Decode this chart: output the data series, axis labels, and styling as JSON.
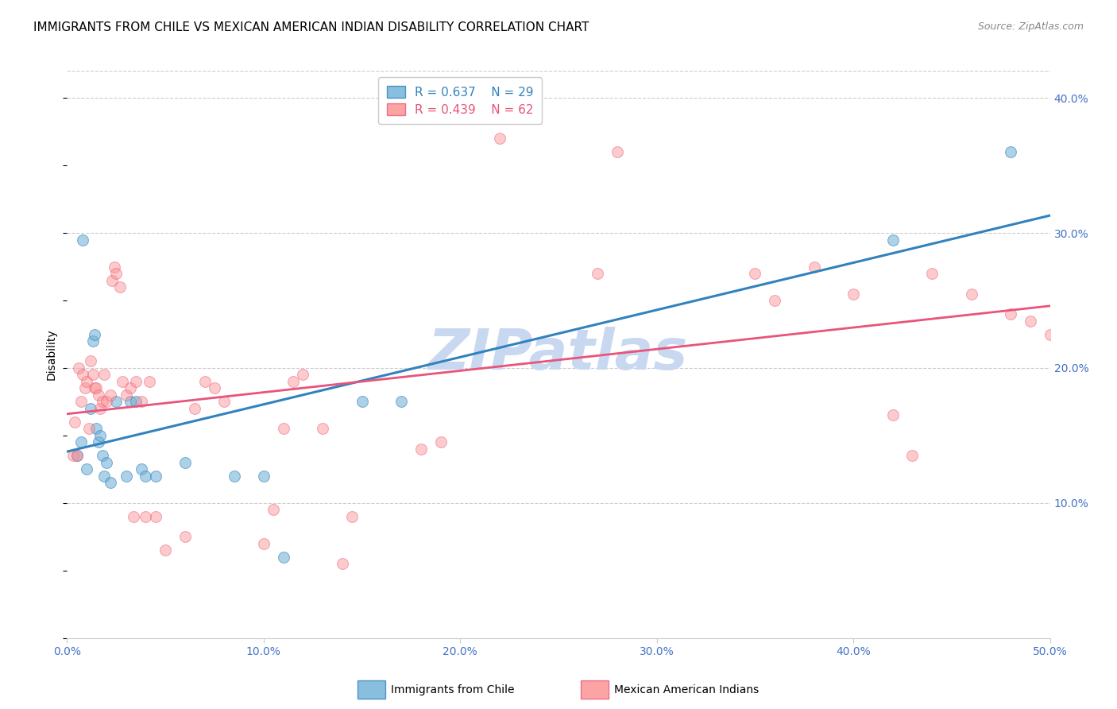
{
  "title": "IMMIGRANTS FROM CHILE VS MEXICAN AMERICAN INDIAN DISABILITY CORRELATION CHART",
  "source": "Source: ZipAtlas.com",
  "ylabel": "Disability",
  "xlim": [
    0.0,
    0.5
  ],
  "ylim": [
    0.0,
    0.42
  ],
  "xticks": [
    0.0,
    0.1,
    0.2,
    0.3,
    0.4,
    0.5
  ],
  "yticks_right": [
    0.1,
    0.2,
    0.3,
    0.4
  ],
  "blue_R": 0.637,
  "blue_N": 29,
  "pink_R": 0.439,
  "pink_N": 62,
  "blue_color": "#6baed6",
  "pink_color": "#fc8d8d",
  "blue_line_color": "#3182bd",
  "pink_line_color": "#e8547a",
  "watermark": "ZIPatlas",
  "watermark_color": "#c8d8f0",
  "legend_label_blue": "Immigrants from Chile",
  "legend_label_pink": "Mexican American Indians",
  "tick_color": "#4472c4",
  "blue_scatter": [
    [
      0.005,
      0.135
    ],
    [
      0.007,
      0.145
    ],
    [
      0.008,
      0.295
    ],
    [
      0.01,
      0.125
    ],
    [
      0.012,
      0.17
    ],
    [
      0.013,
      0.22
    ],
    [
      0.014,
      0.225
    ],
    [
      0.015,
      0.155
    ],
    [
      0.016,
      0.145
    ],
    [
      0.017,
      0.15
    ],
    [
      0.018,
      0.135
    ],
    [
      0.019,
      0.12
    ],
    [
      0.02,
      0.13
    ],
    [
      0.022,
      0.115
    ],
    [
      0.025,
      0.175
    ],
    [
      0.03,
      0.12
    ],
    [
      0.032,
      0.175
    ],
    [
      0.035,
      0.175
    ],
    [
      0.038,
      0.125
    ],
    [
      0.04,
      0.12
    ],
    [
      0.045,
      0.12
    ],
    [
      0.06,
      0.13
    ],
    [
      0.085,
      0.12
    ],
    [
      0.1,
      0.12
    ],
    [
      0.11,
      0.06
    ],
    [
      0.15,
      0.175
    ],
    [
      0.17,
      0.175
    ],
    [
      0.42,
      0.295
    ],
    [
      0.48,
      0.36
    ]
  ],
  "pink_scatter": [
    [
      0.003,
      0.135
    ],
    [
      0.004,
      0.16
    ],
    [
      0.005,
      0.135
    ],
    [
      0.006,
      0.2
    ],
    [
      0.007,
      0.175
    ],
    [
      0.008,
      0.195
    ],
    [
      0.009,
      0.185
    ],
    [
      0.01,
      0.19
    ],
    [
      0.011,
      0.155
    ],
    [
      0.012,
      0.205
    ],
    [
      0.013,
      0.195
    ],
    [
      0.014,
      0.185
    ],
    [
      0.015,
      0.185
    ],
    [
      0.016,
      0.18
    ],
    [
      0.017,
      0.17
    ],
    [
      0.018,
      0.175
    ],
    [
      0.019,
      0.195
    ],
    [
      0.02,
      0.175
    ],
    [
      0.022,
      0.18
    ],
    [
      0.023,
      0.265
    ],
    [
      0.024,
      0.275
    ],
    [
      0.025,
      0.27
    ],
    [
      0.027,
      0.26
    ],
    [
      0.028,
      0.19
    ],
    [
      0.03,
      0.18
    ],
    [
      0.032,
      0.185
    ],
    [
      0.034,
      0.09
    ],
    [
      0.035,
      0.19
    ],
    [
      0.038,
      0.175
    ],
    [
      0.04,
      0.09
    ],
    [
      0.042,
      0.19
    ],
    [
      0.045,
      0.09
    ],
    [
      0.05,
      0.065
    ],
    [
      0.06,
      0.075
    ],
    [
      0.065,
      0.17
    ],
    [
      0.07,
      0.19
    ],
    [
      0.075,
      0.185
    ],
    [
      0.08,
      0.175
    ],
    [
      0.1,
      0.07
    ],
    [
      0.105,
      0.095
    ],
    [
      0.11,
      0.155
    ],
    [
      0.115,
      0.19
    ],
    [
      0.12,
      0.195
    ],
    [
      0.13,
      0.155
    ],
    [
      0.14,
      0.055
    ],
    [
      0.145,
      0.09
    ],
    [
      0.18,
      0.14
    ],
    [
      0.19,
      0.145
    ],
    [
      0.22,
      0.37
    ],
    [
      0.27,
      0.27
    ],
    [
      0.28,
      0.36
    ],
    [
      0.35,
      0.27
    ],
    [
      0.36,
      0.25
    ],
    [
      0.38,
      0.275
    ],
    [
      0.4,
      0.255
    ],
    [
      0.42,
      0.165
    ],
    [
      0.43,
      0.135
    ],
    [
      0.44,
      0.27
    ],
    [
      0.46,
      0.255
    ],
    [
      0.48,
      0.24
    ],
    [
      0.49,
      0.235
    ],
    [
      0.5,
      0.225
    ]
  ],
  "title_fontsize": 11,
  "axis_label_fontsize": 10,
  "tick_fontsize": 10,
  "legend_fontsize": 11
}
